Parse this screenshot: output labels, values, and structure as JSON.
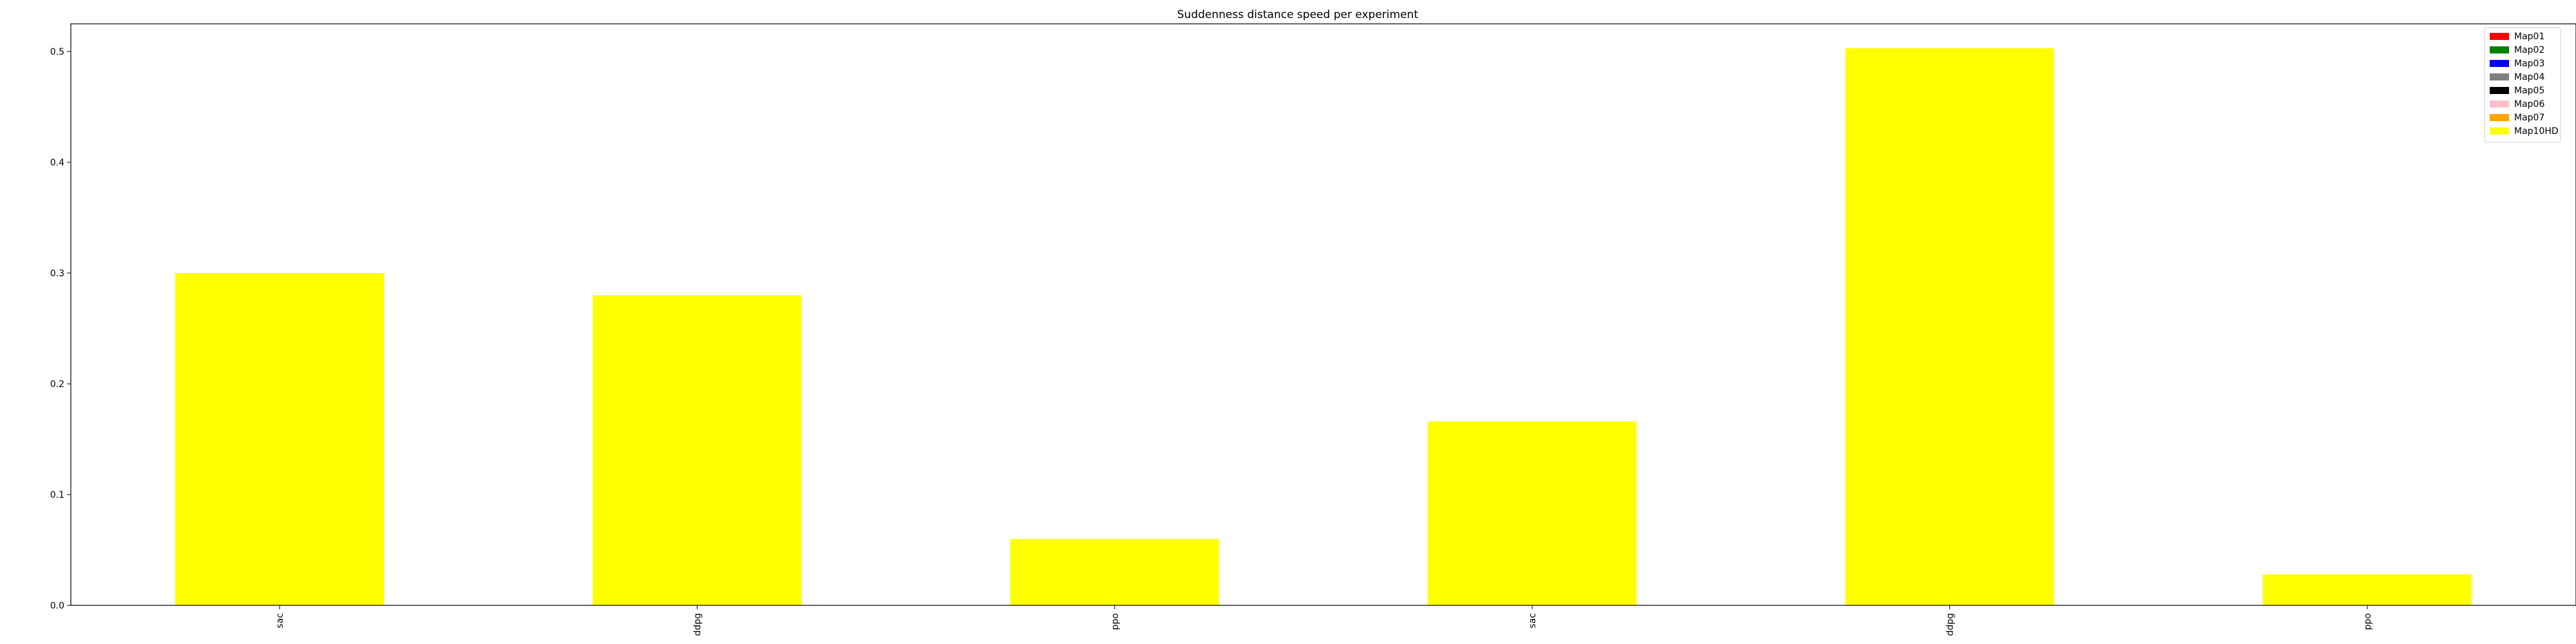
{
  "chart_data": {
    "type": "bar",
    "title": "Suddenness distance speed per experiment",
    "xlabel": "",
    "ylabel": "",
    "categories": [
      "sac",
      "ddpg",
      "ppo",
      "sac",
      "ddpg",
      "ppo"
    ],
    "ylim": [
      0,
      0.525
    ],
    "yticks": [
      0.0,
      0.1,
      0.2,
      0.3,
      0.4,
      0.5
    ],
    "ytick_labels": [
      "0.0",
      "0.1",
      "0.2",
      "0.3",
      "0.4",
      "0.5"
    ],
    "grid": false,
    "legend_position": "top-right",
    "legend": [
      {
        "name": "Map01",
        "color": "#ff0000"
      },
      {
        "name": "Map02",
        "color": "#008000"
      },
      {
        "name": "Map03",
        "color": "#0000ff"
      },
      {
        "name": "Map04",
        "color": "#808080"
      },
      {
        "name": "Map05",
        "color": "#000000"
      },
      {
        "name": "Map06",
        "color": "#ffc0cb"
      },
      {
        "name": "Map07",
        "color": "#ffa500"
      },
      {
        "name": "Map10HD",
        "color": "#ffff00"
      }
    ],
    "series": [
      {
        "name": "Map10HD",
        "color": "#ffff00",
        "values": [
          0.3,
          0.28,
          0.06,
          0.166,
          0.503,
          0.028
        ]
      }
    ]
  }
}
